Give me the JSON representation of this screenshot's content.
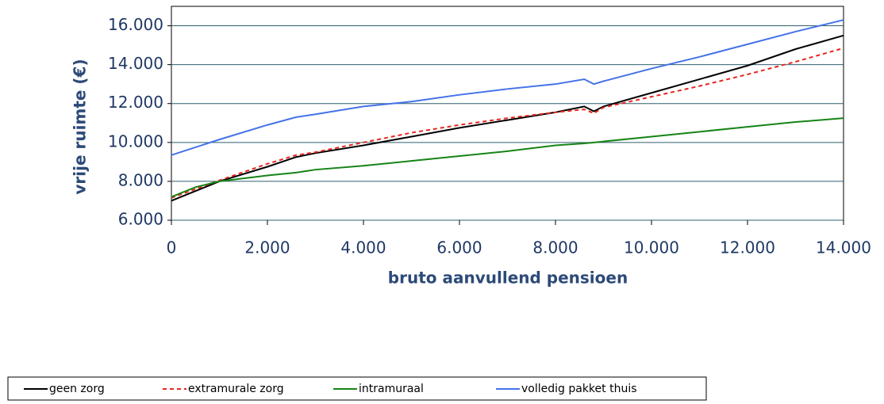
{
  "chart_data": {
    "type": "line",
    "x_label": "bruto aanvullend pensioen",
    "y_label": "vrije ruimte (€)",
    "x": [
      0,
      500,
      1000,
      2000,
      2600,
      3000,
      4000,
      5000,
      6000,
      7000,
      8000,
      8600,
      8800,
      9000,
      10000,
      11000,
      12000,
      13000,
      14000
    ],
    "series": [
      {
        "name": "geen zorg",
        "color": "#000000",
        "dash": false,
        "values": [
          7000,
          7500,
          8000,
          8750,
          9250,
          9450,
          9850,
          10300,
          10750,
          11150,
          11550,
          11850,
          11600,
          11850,
          12550,
          13250,
          13950,
          14800,
          15500
        ]
      },
      {
        "name": "extramurale zorg",
        "color": "#e8261f",
        "dash": true,
        "values": [
          7150,
          7600,
          8050,
          8900,
          9350,
          9500,
          10000,
          10500,
          10900,
          11250,
          11550,
          11700,
          11500,
          11800,
          12350,
          12900,
          13500,
          14150,
          14850
        ]
      },
      {
        "name": "intramuraal",
        "color": "#168416",
        "dash": false,
        "values": [
          7200,
          7700,
          8000,
          8300,
          8450,
          8600,
          8800,
          9050,
          9300,
          9550,
          9850,
          9950,
          10000,
          10050,
          10300,
          10550,
          10800,
          11050,
          11250
        ]
      },
      {
        "name": "volledig pakket thuis",
        "color": "#4472e8",
        "dash": false,
        "values": [
          9350,
          9750,
          10150,
          10900,
          11300,
          11450,
          11850,
          12100,
          12450,
          12750,
          13000,
          13250,
          13000,
          13150,
          13800,
          14400,
          15050,
          15700,
          16300
        ]
      }
    ],
    "xlim": [
      0,
      14000
    ],
    "xticks": [
      0,
      {
        "value": 2000,
        "label": "2.000"
      },
      {
        "value": 4000,
        "label": "4.000"
      },
      {
        "value": 6000,
        "label": "6.000"
      },
      {
        "value": 8000,
        "label": "8.000"
      },
      {
        "value": 10000,
        "label": "10.000"
      },
      {
        "value": 12000,
        "label": "12.000"
      },
      {
        "value": 14000,
        "label": "14.000"
      }
    ],
    "ylim": [
      6000,
      17000
    ],
    "yticks": [
      {
        "value": 6000,
        "label": "6.000"
      },
      {
        "value": 8000,
        "label": "8.000"
      },
      {
        "value": 10000,
        "label": "10.000"
      },
      {
        "value": 12000,
        "label": "12.000"
      },
      {
        "value": 14000,
        "label": "14.000"
      },
      {
        "value": 16000,
        "label": "16.000"
      }
    ],
    "grid": true,
    "legend": "bottom"
  }
}
